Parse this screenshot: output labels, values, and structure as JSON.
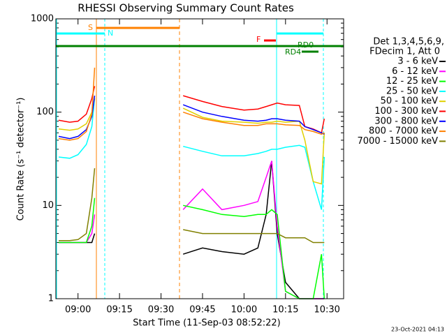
{
  "chart_data": {
    "type": "line",
    "title": "RHESSI Observing Summary Count Rates",
    "x_label": "Start Time (11-Sep-03 08:52:22)",
    "y_label": "Count Rate (s⁻¹ detector⁻¹)",
    "legend_header": [
      "Det 1,3,4,5,6,9,",
      "FDecim 1, Att 0"
    ],
    "timestamp": "23-Oct-2021 04:13",
    "annotations": [
      "S",
      "N",
      "F",
      "RD0",
      "RD4"
    ],
    "log_y": true,
    "legend_position": "right",
    "xlim": [
      "08:52",
      "10:36"
    ],
    "xticks": [
      "09:00",
      "09:15",
      "09:30",
      "09:45",
      "10:00",
      "10:15",
      "10:30"
    ],
    "ylim": [
      1,
      1000
    ],
    "yticks": [
      1,
      10,
      100,
      1000
    ],
    "x": [
      "08:53",
      "08:57",
      "09:00",
      "09:03",
      "09:05",
      "09:06",
      "09:20",
      "09:38",
      "09:45",
      "09:52",
      "10:00",
      "10:05",
      "10:08",
      "10:10",
      "10:12",
      "10:15",
      "10:20",
      "10:22",
      "10:25",
      "10:28",
      "10:29"
    ],
    "series": [
      {
        "name": "3 - 6 keV",
        "color": "#000000",
        "values": [
          4,
          4,
          4,
          4,
          4,
          5,
          null,
          3,
          3.5,
          3.2,
          3,
          3.5,
          8,
          30,
          5,
          1.5,
          1,
          1,
          1,
          1,
          1
        ]
      },
      {
        "name": "6 - 12 keV",
        "color": "#ff00ff",
        "values": [
          4,
          4,
          4,
          4,
          5,
          8,
          null,
          9,
          15,
          9,
          10,
          11,
          20,
          30,
          6,
          1.2,
          1,
          1,
          1,
          1,
          1
        ]
      },
      {
        "name": "12 - 25 keV",
        "color": "#00ff00",
        "values": [
          4,
          4,
          4,
          4,
          6,
          12,
          null,
          10,
          9,
          8,
          7.6,
          8,
          8,
          9,
          8,
          1.2,
          1,
          1,
          1,
          3,
          1
        ]
      },
      {
        "name": "25 - 50 keV",
        "color": "#00ffff",
        "values": [
          33,
          32,
          35,
          45,
          70,
          140,
          null,
          43,
          38,
          34,
          34,
          36,
          38,
          40,
          40,
          42,
          44,
          42,
          18,
          9,
          33
        ]
      },
      {
        "name": "50 - 100 keV",
        "color": "#e0d000",
        "values": [
          66,
          64,
          66,
          75,
          100,
          140,
          null,
          110,
          88,
          80,
          78,
          76,
          78,
          78,
          80,
          78,
          80,
          50,
          18,
          17,
          60
        ]
      },
      {
        "name": "100 - 300 keV",
        "color": "#ff0000",
        "values": [
          82,
          78,
          80,
          95,
          140,
          190,
          null,
          150,
          130,
          115,
          105,
          108,
          115,
          120,
          125,
          120,
          118,
          70,
          66,
          60,
          85
        ]
      },
      {
        "name": "300 - 800 keV",
        "color": "#0000ff",
        "values": [
          55,
          52,
          55,
          65,
          90,
          150,
          null,
          120,
          100,
          90,
          82,
          80,
          82,
          85,
          85,
          82,
          80,
          70,
          65,
          60,
          58
        ]
      },
      {
        "name": "800 - 7000 keV",
        "color": "#ff8000",
        "values": [
          52,
          50,
          52,
          62,
          95,
          300,
          null,
          100,
          85,
          78,
          72,
          72,
          75,
          75,
          75,
          73,
          72,
          65,
          62,
          58,
          60
        ]
      },
      {
        "name": "7000 - 15000 keV",
        "color": "#808000",
        "values": [
          4.2,
          4.2,
          4.3,
          5,
          12,
          25,
          null,
          5.5,
          5,
          5,
          5,
          5,
          5,
          5,
          5,
          4.5,
          4.5,
          4.5,
          4,
          4,
          4
        ]
      }
    ]
  }
}
